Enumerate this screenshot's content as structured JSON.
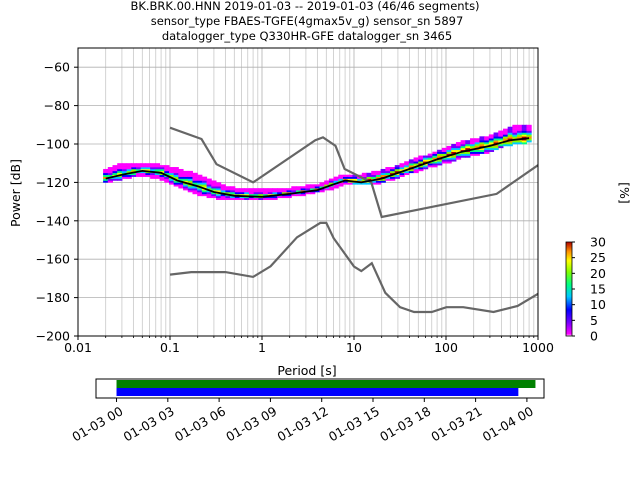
{
  "title_lines": [
    "BK.BRK.00.HNN   2019-01-03 -- 2019-01-03  (46/46 segments)",
    "sensor_type FBAES-TGFE(4gmax5v_g) sensor_sn 5897",
    "datalogger_type Q330HR-GFE datalogger_sn 3465"
  ],
  "chart_data": [
    {
      "type": "heatmap",
      "xlabel": "Period [s]",
      "ylabel": "Power [dB]",
      "xscale": "log",
      "xlim": [
        0.01,
        1000
      ],
      "ylim": [
        -200,
        -50
      ],
      "x_ticks": [
        0.01,
        0.1,
        1,
        10,
        100,
        1000
      ],
      "x_tick_labels": [
        "0.01",
        "0.1",
        "1",
        "10",
        "100",
        "1000"
      ],
      "y_ticks": [
        -200,
        -180,
        -160,
        -140,
        -120,
        -100,
        -80,
        -60
      ],
      "grid": true,
      "colorbar": {
        "label": "[%]",
        "range": [
          0,
          30
        ],
        "ticks": [
          0,
          5,
          10,
          15,
          20,
          25,
          30
        ],
        "colormap": "pqlx"
      },
      "mode_line": {
        "color": "#000000",
        "points": [
          [
            0.02,
            -118
          ],
          [
            0.03,
            -116
          ],
          [
            0.05,
            -114
          ],
          [
            0.08,
            -115
          ],
          [
            0.12,
            -119
          ],
          [
            0.2,
            -122
          ],
          [
            0.3,
            -125
          ],
          [
            0.5,
            -127
          ],
          [
            1,
            -127.5
          ],
          [
            2,
            -126
          ],
          [
            4,
            -124
          ],
          [
            6,
            -121
          ],
          [
            8,
            -119
          ],
          [
            12,
            -120
          ],
          [
            20,
            -118
          ],
          [
            40,
            -113
          ],
          [
            80,
            -108
          ],
          [
            150,
            -104
          ],
          [
            300,
            -101
          ],
          [
            500,
            -98
          ],
          [
            800,
            -97
          ]
        ]
      },
      "psd_spread": [
        [
          0.02,
          -120,
          -114
        ],
        [
          0.03,
          -118,
          -111
        ],
        [
          0.05,
          -116,
          -111
        ],
        [
          0.08,
          -118,
          -112
        ],
        [
          0.12,
          -122,
          -114
        ],
        [
          0.2,
          -126,
          -117
        ],
        [
          0.3,
          -128,
          -121
        ],
        [
          0.5,
          -129,
          -124
        ],
        [
          1,
          -129,
          -125
        ],
        [
          2,
          -127,
          -124
        ],
        [
          4,
          -125,
          -122
        ],
        [
          6,
          -123,
          -119
        ],
        [
          8,
          -120,
          -117
        ],
        [
          12,
          -121,
          -117
        ],
        [
          20,
          -120,
          -115
        ],
        [
          40,
          -115,
          -110
        ],
        [
          80,
          -111,
          -105
        ],
        [
          150,
          -107,
          -100
        ],
        [
          300,
          -104,
          -97
        ],
        [
          500,
          -100,
          -92
        ],
        [
          800,
          -99,
          -91
        ]
      ],
      "noise_models": [
        {
          "name": "NHNM",
          "color": "#666666",
          "points": [
            [
              0.1,
              -91.5
            ],
            [
              0.22,
              -97.4
            ],
            [
              0.32,
              -110.5
            ],
            [
              0.8,
              -120
            ],
            [
              3.8,
              -98
            ],
            [
              4.6,
              -96.5
            ],
            [
              6.3,
              -101
            ],
            [
              7.9,
              -113
            ],
            [
              15.4,
              -120
            ],
            [
              20,
              -138
            ],
            [
              354.8,
              -126
            ],
            [
              1000,
              -111
            ]
          ]
        },
        {
          "name": "NLNM",
          "color": "#666666",
          "points": [
            [
              0.1,
              -168
            ],
            [
              0.17,
              -166.7
            ],
            [
              0.4,
              -166.7
            ],
            [
              0.8,
              -169.2
            ],
            [
              1.24,
              -163.7
            ],
            [
              2.4,
              -148.6
            ],
            [
              4.3,
              -141.1
            ],
            [
              5,
              -141.1
            ],
            [
              6,
              -149
            ],
            [
              10,
              -163.8
            ],
            [
              12,
              -166.2
            ],
            [
              15.6,
              -162.1
            ],
            [
              21.9,
              -177.5
            ],
            [
              31.6,
              -185
            ],
            [
              45,
              -187.5
            ],
            [
              70,
              -187.5
            ],
            [
              101,
              -185
            ],
            [
              154,
              -185
            ],
            [
              328,
              -187.5
            ],
            [
              600,
              -184.4
            ],
            [
              1000,
              -178
            ]
          ]
        }
      ]
    },
    {
      "type": "bar",
      "xlabel": "",
      "x_tick_labels": [
        "01-03 00",
        "01-03 03",
        "01-03 06",
        "01-03 09",
        "01-03 12",
        "01-03 15",
        "01-03 18",
        "01-03 21",
        "01-04 00"
      ],
      "x_ticks_hours": [
        0,
        3,
        6,
        9,
        12,
        15,
        18,
        21,
        24
      ],
      "xlim_hours": [
        -1.2,
        25
      ],
      "series": [
        {
          "color": "#008000",
          "start_hour": 0,
          "end_hour": 24.5
        },
        {
          "color": "#0000ff",
          "start_hour": 0,
          "end_hour": 23.5
        }
      ]
    }
  ]
}
